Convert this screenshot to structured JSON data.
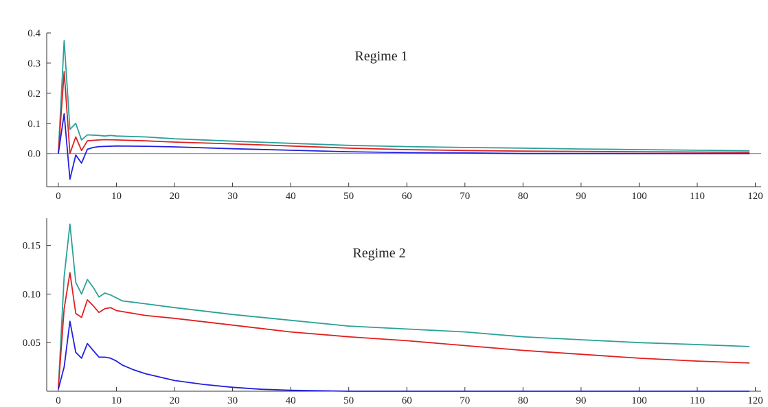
{
  "chart_data": [
    {
      "type": "line",
      "annotation": "Regime 1",
      "xlim": [
        -2,
        121
      ],
      "ylim": [
        -0.11,
        0.4
      ],
      "xticks": [
        0,
        10,
        20,
        30,
        40,
        50,
        60,
        70,
        80,
        90,
        100,
        110,
        120
      ],
      "xtick_labels": [
        "0",
        "10",
        "20",
        "30",
        "40",
        "50",
        "60",
        "70",
        "80",
        "90",
        "100",
        "110",
        "120"
      ],
      "yticks": [
        0.0,
        0.1,
        0.2,
        0.3,
        0.4
      ],
      "ytick_labels": [
        "0.0",
        "0.1",
        "0.2",
        "0.3",
        "0.4"
      ],
      "zero_line": true,
      "series": [
        {
          "color": "#2aa198",
          "points": [
            [
              0,
              0.0
            ],
            [
              1,
              0.375
            ],
            [
              2,
              0.08
            ],
            [
              3,
              0.1
            ],
            [
              4,
              0.045
            ],
            [
              5,
              0.062
            ],
            [
              7,
              0.06
            ],
            [
              8,
              0.058
            ],
            [
              9,
              0.06
            ],
            [
              10,
              0.058
            ],
            [
              15,
              0.055
            ],
            [
              20,
              0.049
            ],
            [
              30,
              0.041
            ],
            [
              40,
              0.034
            ],
            [
              50,
              0.027
            ],
            [
              60,
              0.023
            ],
            [
              70,
              0.02
            ],
            [
              80,
              0.018
            ],
            [
              90,
              0.015
            ],
            [
              100,
              0.013
            ],
            [
              110,
              0.011
            ],
            [
              119,
              0.009
            ]
          ]
        },
        {
          "color": "#e02020",
          "points": [
            [
              0,
              0.0
            ],
            [
              1,
              0.272
            ],
            [
              2,
              0.0
            ],
            [
              3,
              0.055
            ],
            [
              4,
              0.01
            ],
            [
              5,
              0.042
            ],
            [
              7,
              0.045
            ],
            [
              8,
              0.046
            ],
            [
              10,
              0.045
            ],
            [
              15,
              0.042
            ],
            [
              20,
              0.038
            ],
            [
              30,
              0.032
            ],
            [
              40,
              0.025
            ],
            [
              50,
              0.018
            ],
            [
              60,
              0.013
            ],
            [
              70,
              0.01
            ],
            [
              80,
              0.008
            ],
            [
              90,
              0.007
            ],
            [
              100,
              0.006
            ],
            [
              110,
              0.005
            ],
            [
              119,
              0.004
            ]
          ]
        },
        {
          "color": "#2020e0",
          "points": [
            [
              0,
              0.0
            ],
            [
              1,
              0.132
            ],
            [
              2,
              -0.085
            ],
            [
              3,
              -0.005
            ],
            [
              4,
              -0.032
            ],
            [
              5,
              0.014
            ],
            [
              6,
              0.02
            ],
            [
              7,
              0.023
            ],
            [
              10,
              0.025
            ],
            [
              15,
              0.024
            ],
            [
              20,
              0.022
            ],
            [
              30,
              0.016
            ],
            [
              40,
              0.011
            ],
            [
              50,
              0.006
            ],
            [
              60,
              0.003
            ],
            [
              70,
              0.002
            ],
            [
              80,
              0.0
            ],
            [
              90,
              0.0
            ],
            [
              100,
              0.0
            ],
            [
              110,
              0.0
            ],
            [
              119,
              0.0
            ]
          ]
        }
      ]
    },
    {
      "type": "line",
      "annotation": "Regime 2",
      "xlim": [
        -2,
        121
      ],
      "ylim": [
        0.0,
        0.178
      ],
      "xticks": [
        0,
        10,
        20,
        30,
        40,
        50,
        60,
        70,
        80,
        90,
        100,
        110,
        120
      ],
      "xtick_labels": [
        "0",
        "10",
        "20",
        "30",
        "40",
        "50",
        "60",
        "70",
        "80",
        "90",
        "100",
        "110",
        "120"
      ],
      "yticks": [
        0.05,
        0.1,
        0.15
      ],
      "ytick_labels": [
        "0.05",
        "0.10",
        "0.15"
      ],
      "zero_line": false,
      "series": [
        {
          "color": "#2aa198",
          "points": [
            [
              0,
              0.003
            ],
            [
              1,
              0.118
            ],
            [
              2,
              0.172
            ],
            [
              3,
              0.112
            ],
            [
              4,
              0.1
            ],
            [
              5,
              0.115
            ],
            [
              6,
              0.107
            ],
            [
              7,
              0.097
            ],
            [
              8,
              0.101
            ],
            [
              9,
              0.099
            ],
            [
              10,
              0.096
            ],
            [
              11,
              0.093
            ],
            [
              15,
              0.09
            ],
            [
              20,
              0.086
            ],
            [
              30,
              0.079
            ],
            [
              40,
              0.073
            ],
            [
              50,
              0.067
            ],
            [
              60,
              0.064
            ],
            [
              70,
              0.061
            ],
            [
              80,
              0.056
            ],
            [
              90,
              0.053
            ],
            [
              100,
              0.05
            ],
            [
              110,
              0.048
            ],
            [
              119,
              0.046
            ]
          ]
        },
        {
          "color": "#e02020",
          "points": [
            [
              0,
              0.003
            ],
            [
              1,
              0.085
            ],
            [
              2,
              0.122
            ],
            [
              3,
              0.08
            ],
            [
              4,
              0.076
            ],
            [
              5,
              0.094
            ],
            [
              6,
              0.088
            ],
            [
              7,
              0.081
            ],
            [
              8,
              0.085
            ],
            [
              9,
              0.086
            ],
            [
              10,
              0.083
            ],
            [
              15,
              0.078
            ],
            [
              20,
              0.075
            ],
            [
              30,
              0.068
            ],
            [
              40,
              0.061
            ],
            [
              50,
              0.056
            ],
            [
              60,
              0.052
            ],
            [
              70,
              0.047
            ],
            [
              80,
              0.042
            ],
            [
              90,
              0.038
            ],
            [
              100,
              0.034
            ],
            [
              110,
              0.031
            ],
            [
              119,
              0.029
            ]
          ]
        },
        {
          "color": "#2020e0",
          "points": [
            [
              0,
              0.002
            ],
            [
              1,
              0.025
            ],
            [
              2,
              0.072
            ],
            [
              3,
              0.04
            ],
            [
              4,
              0.034
            ],
            [
              5,
              0.049
            ],
            [
              6,
              0.042
            ],
            [
              7,
              0.035
            ],
            [
              8,
              0.035
            ],
            [
              9,
              0.034
            ],
            [
              10,
              0.031
            ],
            [
              11,
              0.027
            ],
            [
              13,
              0.022
            ],
            [
              15,
              0.018
            ],
            [
              20,
              0.011
            ],
            [
              25,
              0.007
            ],
            [
              30,
              0.004
            ],
            [
              35,
              0.002
            ],
            [
              40,
              0.001
            ],
            [
              50,
              0.0
            ],
            [
              60,
              0.0
            ],
            [
              80,
              0.0
            ],
            [
              100,
              0.0
            ],
            [
              119,
              0.0
            ]
          ]
        }
      ]
    }
  ]
}
